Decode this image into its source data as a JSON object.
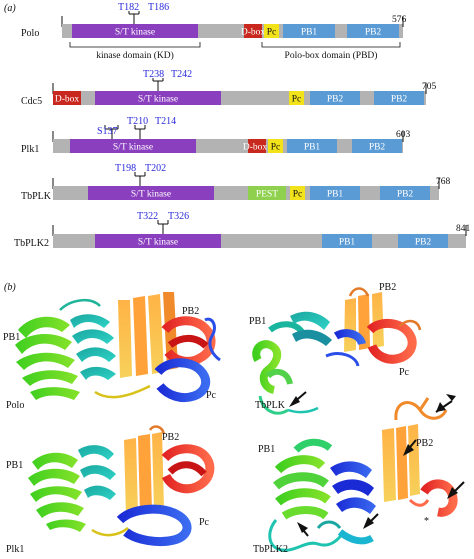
{
  "panels": {
    "a": "(a)",
    "b": "(b)"
  },
  "domains_panel": {
    "proteins": [
      {
        "name": "Polo",
        "length": "576",
        "sites": [
          "T182",
          "T186"
        ],
        "domains": [
          {
            "label": "S/T kinase",
            "type": "kinase"
          },
          {
            "label": "D-box",
            "type": "dbox"
          },
          {
            "label": "Pc",
            "type": "pc"
          },
          {
            "label": "PB1",
            "type": "pb"
          },
          {
            "label": "PB2",
            "type": "pb"
          }
        ],
        "annotations": {
          "kd": "kinase domain (KD)",
          "pbd": "Polo-box domain (PBD)"
        }
      },
      {
        "name": "Cdc5",
        "length": "705",
        "sites": [
          "T238",
          "T242"
        ],
        "domains": [
          {
            "label": "D-box",
            "type": "dbox"
          },
          {
            "label": "S/T kinase",
            "type": "kinase"
          },
          {
            "label": "Pc",
            "type": "pc"
          },
          {
            "label": "PB2",
            "type": "pb"
          },
          {
            "label": "PB2",
            "type": "pb"
          }
        ]
      },
      {
        "name": "Plk1",
        "length": "603",
        "sites": [
          "S137",
          "T210",
          "T214"
        ],
        "domains": [
          {
            "label": "S/T kinase",
            "type": "kinase"
          },
          {
            "label": "D-box",
            "type": "dbox"
          },
          {
            "label": "Pc",
            "type": "pc"
          },
          {
            "label": "PB1",
            "type": "pb"
          },
          {
            "label": "PB2",
            "type": "pb"
          }
        ]
      },
      {
        "name": "TbPLK",
        "length": "768",
        "sites": [
          "T198",
          "T202"
        ],
        "domains": [
          {
            "label": "S/T kinase",
            "type": "kinase"
          },
          {
            "label": "PEST",
            "type": "pest"
          },
          {
            "label": "Pc",
            "type": "pc"
          },
          {
            "label": "PB1",
            "type": "pb"
          },
          {
            "label": "PB2",
            "type": "pb"
          }
        ]
      },
      {
        "name": "TbPLK2",
        "length": "841",
        "sites": [
          "T322",
          "T326"
        ],
        "domains": [
          {
            "label": "S/T kinase",
            "type": "kinase"
          },
          {
            "label": "PB1",
            "type": "pb"
          },
          {
            "label": "PB2",
            "type": "pb"
          }
        ]
      }
    ]
  },
  "structures_panel": {
    "structures": [
      {
        "name": "Polo",
        "labels": [
          "PB1",
          "PB2",
          "Pc"
        ]
      },
      {
        "name": "TbPLK",
        "labels": [
          "PB1",
          "PB2",
          "Pc"
        ]
      },
      {
        "name": "Plk1",
        "labels": [
          "PB1",
          "PB2",
          "Pc"
        ]
      },
      {
        "name": "TbPLK2",
        "labels": [
          "PB1",
          "PB2",
          "*"
        ]
      }
    ]
  },
  "colors": {
    "backbone": "#b3b3b3",
    "kinase": "#8a3fbf",
    "dbox": "#c8281e",
    "pc": "#f2e21a",
    "pb": "#5b9bd5",
    "pest": "#8fd14f",
    "site_text": "#2a2adc"
  }
}
